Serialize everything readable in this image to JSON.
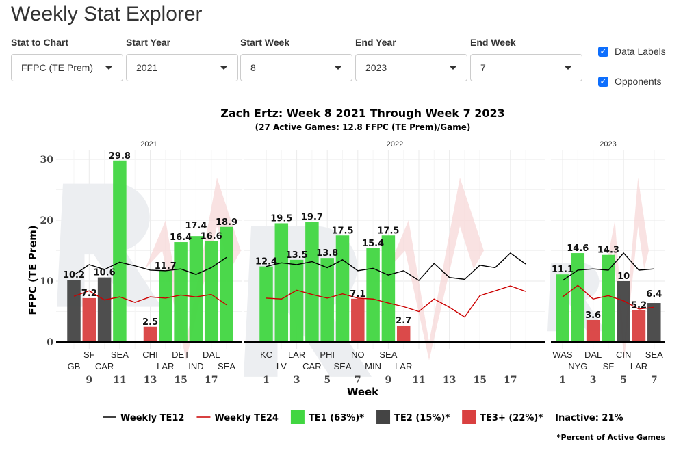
{
  "app": {
    "title": "Weekly Stat Explorer"
  },
  "controls": [
    {
      "label": "Stat to Chart",
      "value": "FFPC (TE Prem)"
    },
    {
      "label": "Start Year",
      "value": "2021"
    },
    {
      "label": "Start Week",
      "value": "8"
    },
    {
      "label": "End Year",
      "value": "2023"
    },
    {
      "label": "End Week",
      "value": "7"
    }
  ],
  "checkboxes": [
    {
      "label": "Data Labels",
      "checked": true
    },
    {
      "label": "Opponents",
      "checked": true
    }
  ],
  "colors": {
    "TE1": "#41d641",
    "TE2": "#444444",
    "TE3": "#d94040",
    "te12": "#000000",
    "te24": "#cc0000"
  },
  "chart_data": {
    "type": "bar",
    "title": "Zach Ertz: Week 8 2021 Through Week 7 2023",
    "subtitle": "(27 Active Games: 12.8 FFPC (TE Prem)/Game)",
    "xlabel": "Week",
    "ylabel": "FFPC (TE Prem)",
    "ylim": [
      0,
      30
    ],
    "yticks": [
      0,
      10,
      20,
      30
    ],
    "panels": [
      {
        "year": "2021",
        "weeks": [
          8,
          9,
          10,
          11,
          12,
          13,
          14,
          15,
          16,
          17,
          18
        ],
        "xticks": [
          9,
          11,
          13,
          15,
          17
        ],
        "bars": [
          {
            "week": 8,
            "opp": "GB",
            "value": 10.2,
            "tier": "TE2"
          },
          {
            "week": 9,
            "opp": "SF",
            "value": 7.2,
            "tier": "TE3"
          },
          {
            "week": 10,
            "opp": "CAR",
            "value": 10.6,
            "tier": "TE2"
          },
          {
            "week": 11,
            "opp": "SEA",
            "value": 29.8,
            "tier": "TE1"
          },
          {
            "week": 13,
            "opp": "CHI",
            "value": 2.5,
            "tier": "TE3"
          },
          {
            "week": 14,
            "opp": "LAR",
            "value": 11.7,
            "tier": "TE1"
          },
          {
            "week": 15,
            "opp": "DET",
            "value": 16.4,
            "tier": "TE1"
          },
          {
            "week": 16,
            "opp": "IND",
            "value": 17.4,
            "tier": "TE1"
          },
          {
            "week": 17,
            "opp": "DAL",
            "value": 16.6,
            "tier": "TE1"
          },
          {
            "week": 18,
            "opp": "SEA",
            "value": 18.9,
            "tier": "TE1"
          }
        ],
        "te12": [
          11.0,
          12.7,
          11.9,
          13.1,
          12.5,
          11.8,
          11.7,
          12.0,
          11.1,
          12.2,
          13.9
        ],
        "te24": [
          7.5,
          8.4,
          6.9,
          7.4,
          6.5,
          7.4,
          7.2,
          7.7,
          7.4,
          7.8,
          6.1
        ]
      },
      {
        "year": "2022",
        "weeks": [
          1,
          2,
          3,
          4,
          5,
          6,
          7,
          8,
          9,
          10,
          11,
          12,
          13,
          14,
          15,
          16,
          17,
          18
        ],
        "xticks": [
          1,
          3,
          5,
          7,
          9,
          11,
          13,
          15,
          17
        ],
        "bars": [
          {
            "week": 1,
            "opp": "KC",
            "value": 12.4,
            "tier": "TE1"
          },
          {
            "week": 2,
            "opp": "LV",
            "value": 19.5,
            "tier": "TE1"
          },
          {
            "week": 3,
            "opp": "LAR",
            "value": 13.5,
            "tier": "TE1"
          },
          {
            "week": 4,
            "opp": "CAR",
            "value": 19.7,
            "tier": "TE1"
          },
          {
            "week": 5,
            "opp": "PHI",
            "value": 13.8,
            "tier": "TE1"
          },
          {
            "week": 6,
            "opp": "SEA",
            "value": 17.5,
            "tier": "TE1"
          },
          {
            "week": 7,
            "opp": "NO",
            "value": 7.1,
            "tier": "TE3"
          },
          {
            "week": 8,
            "opp": "MIN",
            "value": 15.4,
            "tier": "TE1"
          },
          {
            "week": 9,
            "opp": "SEA",
            "value": 17.5,
            "tier": "TE1"
          },
          {
            "week": 10,
            "opp": "LAR",
            "value": 2.7,
            "tier": "TE3"
          }
        ],
        "te12": [
          12.4,
          13.0,
          12.7,
          13.2,
          12.2,
          13.5,
          11.7,
          12.1,
          11.0,
          11.7,
          10.1,
          12.9,
          10.6,
          10.3,
          12.6,
          12.2,
          14.6,
          12.8
        ],
        "te24": [
          7.2,
          7.05,
          8.5,
          7.8,
          7.2,
          7.9,
          7.2,
          7.05,
          6.4,
          5.8,
          5.0,
          7.05,
          5.7,
          4.1,
          7.6,
          8.4,
          9.2,
          8.3
        ]
      },
      {
        "year": "2023",
        "weeks": [
          1,
          2,
          3,
          4,
          5,
          6,
          7
        ],
        "xticks": [
          1,
          3,
          5,
          7
        ],
        "bars": [
          {
            "week": 1,
            "opp": "WAS",
            "value": 11.1,
            "tier": "TE1"
          },
          {
            "week": 2,
            "opp": "NYG",
            "value": 14.6,
            "tier": "TE1"
          },
          {
            "week": 3,
            "opp": "DAL",
            "value": 3.6,
            "tier": "TE3"
          },
          {
            "week": 4,
            "opp": "SF",
            "value": 14.3,
            "tier": "TE1"
          },
          {
            "week": 5,
            "opp": "CIN",
            "value": 10,
            "tier": "TE2"
          },
          {
            "week": 6,
            "opp": "LAR",
            "value": 5.2,
            "tier": "TE3"
          },
          {
            "week": 7,
            "opp": "SEA",
            "value": 6.4,
            "tier": "TE2"
          }
        ],
        "te12": [
          10.1,
          11.8,
          12.0,
          11.8,
          14.6,
          11.8,
          12.0
        ],
        "te24": [
          7.4,
          9.3,
          7.05,
          7.6,
          6.75,
          5.4,
          5.7
        ]
      }
    ],
    "legend": {
      "te12": "Weekly TE12",
      "te24": "Weekly TE24",
      "TE1": "TE1 (63%)*",
      "TE2": "TE2 (15%)*",
      "TE3": "TE3+ (22%)*",
      "inactive": "Inactive: 21%"
    },
    "footnote": "*Percent of Active Games"
  }
}
